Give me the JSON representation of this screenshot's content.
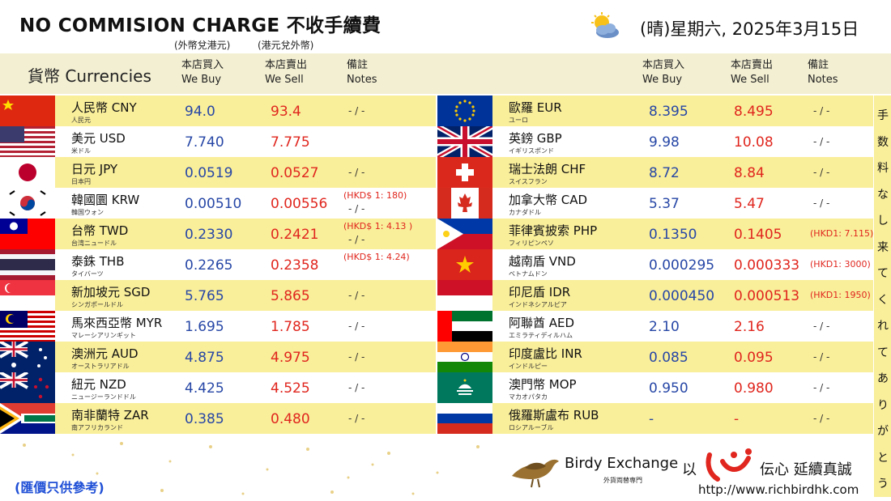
{
  "header": {
    "title": "NO COMMISION CHARGE 不收手續費",
    "subtitle_buy": "(外幣兌港元)",
    "subtitle_sell": "(港元兌外幣)",
    "weather_icon": "sun-behind-cloud-icon",
    "date": "(晴)星期六, 2025年3月15日"
  },
  "columns": {
    "currency": "貨幣 Currencies",
    "buy_zh": "本店買入",
    "buy_en": "We Buy",
    "sell_zh": "本店賣出",
    "sell_en": "We Sell",
    "notes_zh": "備註",
    "notes_en": "Notes"
  },
  "left_rates": [
    {
      "name": "人民幣 CNY",
      "jp": "人民元",
      "buy": "94.0",
      "sell": "93.4",
      "note": "- / -",
      "note2": ""
    },
    {
      "name": "美元 USD",
      "jp": "米ドル",
      "buy": "7.740",
      "sell": "7.775",
      "note": "",
      "note2": ""
    },
    {
      "name": "日元 JPY",
      "jp": "日本円",
      "buy": "0.0519",
      "sell": "0.0527",
      "note": "- / -",
      "note2": ""
    },
    {
      "name": "韓國圜 KRW",
      "jp": "韓国ウォン",
      "buy": "0.00510",
      "sell": "0.00556",
      "note": "(HKD$ 1: 180)",
      "note2": "- / -"
    },
    {
      "name": "台幣 TWD",
      "jp": "台湾ニュードル",
      "buy": "0.2330",
      "sell": "0.2421",
      "note": "(HKD$ 1: 4.13 )",
      "note2": "- / -"
    },
    {
      "name": "泰銖 THB",
      "jp": "タイバーツ",
      "buy": "0.2265",
      "sell": "0.2358",
      "note": "(HKD$ 1: 4.24)",
      "note2": ""
    },
    {
      "name": "新加坡元 SGD",
      "jp": "シンガポールドル",
      "buy": "5.765",
      "sell": "5.865",
      "note": "- / -",
      "note2": ""
    },
    {
      "name": "馬來西亞幣 MYR",
      "jp": "マレーシアリンギット",
      "buy": "1.695",
      "sell": "1.785",
      "note": "- / -",
      "note2": ""
    },
    {
      "name": "澳洲元 AUD",
      "jp": "オーストラリアドル",
      "buy": "4.875",
      "sell": "4.975",
      "note": "- / -",
      "note2": ""
    },
    {
      "name": "紐元 NZD",
      "jp": "ニュージーランドドル",
      "buy": "4.425",
      "sell": "4.525",
      "note": "- / -",
      "note2": ""
    },
    {
      "name": "南非蘭特 ZAR",
      "jp": "南アフリカランド",
      "buy": "0.385",
      "sell": "0.480",
      "note": "- / -",
      "note2": ""
    }
  ],
  "right_rates": [
    {
      "name": "歐羅 EUR",
      "jp": "ユーロ",
      "buy": "8.395",
      "sell": "8.495",
      "note": "- / -"
    },
    {
      "name": "英鎊 GBP",
      "jp": "イギリスポンド",
      "buy": "9.98",
      "sell": "10.08",
      "note": "- / -"
    },
    {
      "name": "瑞士法朗 CHF",
      "jp": "スイスフラン",
      "buy": "8.72",
      "sell": "8.84",
      "note": "- / -"
    },
    {
      "name": "加拿大幣 CAD",
      "jp": "カナダドル",
      "buy": "5.37",
      "sell": "5.47",
      "note": "- / -"
    },
    {
      "name": "菲律賓披索 PHP",
      "jp": "フィリピンペソ",
      "buy": "0.1350",
      "sell": "0.1405",
      "note": "(HKD1: 7.115)"
    },
    {
      "name": "越南盾 VND",
      "jp": "ベトナムドン",
      "buy": "0.000295",
      "sell": "0.000333",
      "note": "(HKD1: 3000)"
    },
    {
      "name": "印尼盾 IDR",
      "jp": "インドネシアルピア",
      "buy": "0.000450",
      "sell": "0.000513",
      "note": "(HKD1: 1950)"
    },
    {
      "name": "阿聯酋 AED",
      "jp": "エミラティディルハム",
      "buy": "2.10",
      "sell": "2.16",
      "note": "- / -"
    },
    {
      "name": "印度盧比 INR",
      "jp": "インドルピー",
      "buy": "0.085",
      "sell": "0.095",
      "note": "- / -"
    },
    {
      "name": "澳門幣 MOP",
      "jp": "マカオパタカ",
      "buy": "0.950",
      "sell": "0.980",
      "note": "- / -"
    },
    {
      "name": "俄羅斯盧布 RUB",
      "jp": "ロシアルーブル",
      "buy": "-",
      "sell": "-",
      "note": "- / -"
    }
  ],
  "side_text": [
    "手",
    "数",
    "料",
    "な",
    "し",
    "来",
    "て",
    "く",
    "れ",
    "て",
    "あ",
    "り",
    "が",
    "と",
    "う"
  ],
  "footer": {
    "disclaimer": "(匯價只供參考)",
    "brand": "Birdy Exchange",
    "brand_sub": "外貨両替専門",
    "slogan_pre": "以",
    "slogan_post": "伝心 延續真誠",
    "website": "http://www.richbirdhk.com"
  },
  "colors": {
    "row_yellow": "#f9ee9a",
    "header_band": "#f3efd2",
    "buy_blue": "#2747a6",
    "sell_red": "#e0261e",
    "disclaimer_blue": "#1f4fd6"
  }
}
